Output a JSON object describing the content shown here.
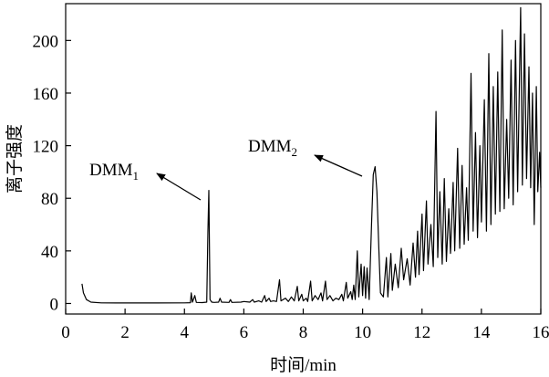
{
  "chart_data": {
    "type": "line",
    "xlabel": "时间/min",
    "ylabel": "离子强度",
    "xlim": [
      0,
      16
    ],
    "ylim": [
      -8,
      228
    ],
    "x_ticks": [
      0,
      2,
      4,
      6,
      8,
      10,
      12,
      14,
      16
    ],
    "y_ticks": [
      0,
      40,
      80,
      120,
      160,
      200
    ],
    "grid": false,
    "series": [
      {
        "points": [
          [
            0.55,
            15
          ],
          [
            0.6,
            8
          ],
          [
            0.7,
            3
          ],
          [
            0.85,
            1
          ],
          [
            1.2,
            0.5
          ],
          [
            2.0,
            0.4
          ],
          [
            3.0,
            0.4
          ],
          [
            4.0,
            0.5
          ],
          [
            4.2,
            0.6
          ],
          [
            4.23,
            8
          ],
          [
            4.27,
            1
          ],
          [
            4.35,
            6
          ],
          [
            4.4,
            0.8
          ],
          [
            4.6,
            0.7
          ],
          [
            4.75,
            1
          ],
          [
            4.79,
            55
          ],
          [
            4.82,
            86
          ],
          [
            4.86,
            3
          ],
          [
            4.92,
            1
          ],
          [
            5.0,
            0.8
          ],
          [
            5.15,
            1
          ],
          [
            5.2,
            4
          ],
          [
            5.25,
            1
          ],
          [
            5.5,
            0.8
          ],
          [
            5.55,
            3
          ],
          [
            5.6,
            0.8
          ],
          [
            5.9,
            1
          ],
          [
            6.0,
            1.5
          ],
          [
            6.2,
            1
          ],
          [
            6.3,
            3
          ],
          [
            6.35,
            1
          ],
          [
            6.5,
            2
          ],
          [
            6.6,
            1
          ],
          [
            6.7,
            6
          ],
          [
            6.75,
            1.5
          ],
          [
            6.85,
            4
          ],
          [
            6.9,
            1.5
          ],
          [
            7.0,
            2
          ],
          [
            7.1,
            1.5
          ],
          [
            7.2,
            18
          ],
          [
            7.25,
            2
          ],
          [
            7.4,
            4
          ],
          [
            7.5,
            1.5
          ],
          [
            7.6,
            5
          ],
          [
            7.7,
            2
          ],
          [
            7.8,
            13
          ],
          [
            7.85,
            2
          ],
          [
            7.95,
            7
          ],
          [
            8.0,
            2
          ],
          [
            8.1,
            4
          ],
          [
            8.15,
            1.5
          ],
          [
            8.25,
            17
          ],
          [
            8.3,
            2
          ],
          [
            8.4,
            6
          ],
          [
            8.5,
            3
          ],
          [
            8.6,
            8
          ],
          [
            8.65,
            2
          ],
          [
            8.75,
            17
          ],
          [
            8.8,
            3
          ],
          [
            8.9,
            6
          ],
          [
            9.0,
            2
          ],
          [
            9.1,
            4
          ],
          [
            9.2,
            3
          ],
          [
            9.3,
            7
          ],
          [
            9.35,
            2
          ],
          [
            9.45,
            16
          ],
          [
            9.5,
            4
          ],
          [
            9.6,
            9
          ],
          [
            9.65,
            3
          ],
          [
            9.7,
            14
          ],
          [
            9.75,
            3
          ],
          [
            9.82,
            40
          ],
          [
            9.87,
            5
          ],
          [
            9.95,
            30
          ],
          [
            10.0,
            6
          ],
          [
            10.05,
            28
          ],
          [
            10.1,
            4
          ],
          [
            10.15,
            27
          ],
          [
            10.22,
            3
          ],
          [
            10.3,
            60
          ],
          [
            10.36,
            98
          ],
          [
            10.42,
            104
          ],
          [
            10.48,
            85
          ],
          [
            10.55,
            40
          ],
          [
            10.6,
            8
          ],
          [
            10.7,
            5
          ],
          [
            10.8,
            35
          ],
          [
            10.85,
            5
          ],
          [
            10.95,
            38
          ],
          [
            11.0,
            10
          ],
          [
            11.1,
            30
          ],
          [
            11.2,
            12
          ],
          [
            11.3,
            42
          ],
          [
            11.38,
            18
          ],
          [
            11.5,
            34
          ],
          [
            11.6,
            14
          ],
          [
            11.7,
            46
          ],
          [
            11.78,
            20
          ],
          [
            11.85,
            55
          ],
          [
            11.9,
            22
          ],
          [
            12.0,
            68
          ],
          [
            12.05,
            25
          ],
          [
            12.15,
            78
          ],
          [
            12.2,
            30
          ],
          [
            12.3,
            60
          ],
          [
            12.38,
            28
          ],
          [
            12.47,
            146
          ],
          [
            12.53,
            35
          ],
          [
            12.6,
            85
          ],
          [
            12.68,
            30
          ],
          [
            12.75,
            95
          ],
          [
            12.82,
            32
          ],
          [
            12.9,
            72
          ],
          [
            12.96,
            38
          ],
          [
            13.05,
            92
          ],
          [
            13.1,
            40
          ],
          [
            13.2,
            118
          ],
          [
            13.27,
            42
          ],
          [
            13.35,
            105
          ],
          [
            13.42,
            45
          ],
          [
            13.5,
            88
          ],
          [
            13.56,
            48
          ],
          [
            13.65,
            175
          ],
          [
            13.72,
            55
          ],
          [
            13.8,
            130
          ],
          [
            13.87,
            50
          ],
          [
            13.95,
            120
          ],
          [
            14.0,
            62
          ],
          [
            14.1,
            155
          ],
          [
            14.17,
            55
          ],
          [
            14.25,
            190
          ],
          [
            14.32,
            60
          ],
          [
            14.4,
            165
          ],
          [
            14.47,
            68
          ],
          [
            14.55,
            176
          ],
          [
            14.62,
            70
          ],
          [
            14.7,
            208
          ],
          [
            14.77,
            72
          ],
          [
            14.85,
            140
          ],
          [
            14.92,
            80
          ],
          [
            15.0,
            185
          ],
          [
            15.07,
            75
          ],
          [
            15.15,
            200
          ],
          [
            15.22,
            85
          ],
          [
            15.32,
            225
          ],
          [
            15.38,
            90
          ],
          [
            15.45,
            205
          ],
          [
            15.52,
            95
          ],
          [
            15.6,
            180
          ],
          [
            15.66,
            88
          ],
          [
            15.72,
            160
          ],
          [
            15.78,
            60
          ],
          [
            15.85,
            165
          ],
          [
            15.9,
            85
          ],
          [
            15.96,
            115
          ],
          [
            16.0,
            88
          ]
        ]
      }
    ],
    "annotations": [
      {
        "label": "DMM",
        "subscript": "1",
        "peak_x": 4.82
      },
      {
        "label": "DMM",
        "subscript": "2",
        "peak_x": 10.42
      }
    ]
  }
}
